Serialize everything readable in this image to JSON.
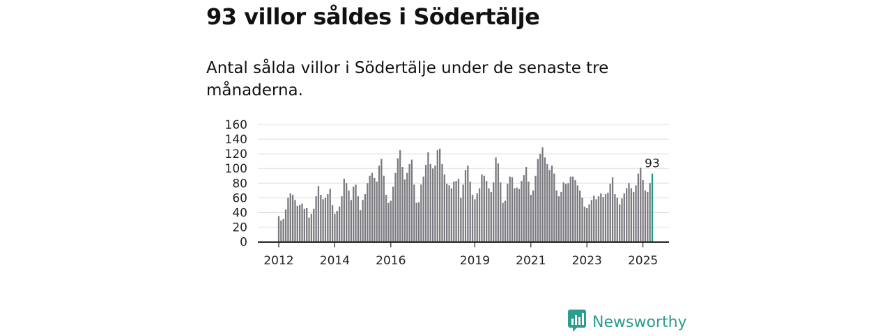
{
  "title": "93 villor såldes i Södertälje",
  "subtitle": "Antal sålda villor i Södertälje under de senaste tre månaderna.",
  "brand": {
    "name": "Newsworthy",
    "color": "#2a9d8f",
    "icon": "bar-chart-logo-icon"
  },
  "colors": {
    "bar": "#7a7a80",
    "highlight": "#1a9a8c",
    "grid": "#dcdcdc",
    "axis": "#222222"
  },
  "chart_data": {
    "type": "bar",
    "title": "93 villor såldes i Södertälje",
    "ylim": [
      0,
      160
    ],
    "yticks": [
      0,
      20,
      40,
      60,
      80,
      100,
      120,
      140,
      160
    ],
    "grid": true,
    "x_start": "2012-01",
    "xticks": [
      "2012",
      "2014",
      "2016",
      "2019",
      "2021",
      "2023",
      "2025"
    ],
    "annotation": {
      "text": "93",
      "at": "last"
    },
    "values": [
      35,
      29,
      31,
      44,
      60,
      66,
      64,
      57,
      49,
      50,
      52,
      45,
      46,
      33,
      38,
      45,
      62,
      76,
      64,
      58,
      60,
      65,
      72,
      50,
      38,
      42,
      48,
      62,
      86,
      80,
      70,
      57,
      75,
      78,
      62,
      43,
      57,
      65,
      80,
      90,
      94,
      87,
      82,
      104,
      113,
      90,
      64,
      53,
      56,
      75,
      94,
      114,
      125,
      102,
      85,
      94,
      106,
      112,
      78,
      53,
      54,
      78,
      89,
      105,
      122,
      106,
      100,
      104,
      125,
      127,
      106,
      92,
      79,
      77,
      73,
      82,
      83,
      86,
      60,
      78,
      98,
      104,
      82,
      64,
      58,
      66,
      73,
      92,
      90,
      83,
      73,
      68,
      81,
      115,
      107,
      81,
      53,
      56,
      79,
      89,
      88,
      73,
      74,
      72,
      83,
      91,
      102,
      82,
      64,
      70,
      90,
      113,
      120,
      129,
      115,
      106,
      98,
      104,
      93,
      70,
      62,
      68,
      81,
      79,
      80,
      89,
      89,
      84,
      77,
      70,
      60,
      48,
      46,
      51,
      57,
      63,
      58,
      62,
      66,
      61,
      65,
      67,
      79,
      88,
      65,
      60,
      51,
      59,
      66,
      73,
      80,
      73,
      68,
      77,
      93,
      101,
      84,
      70,
      68,
      80,
      93
    ]
  }
}
